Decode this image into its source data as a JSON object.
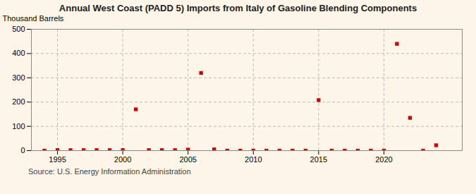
{
  "chart_data": {
    "type": "scatter",
    "title": "Annual West Coast (PADD 5) Imports from Italy of Gasoline Blending Components",
    "ylabel": "Thousand Barrels",
    "source": "Source: U.S. Energy Information Administration",
    "x": [
      1994,
      1995,
      1996,
      1997,
      1998,
      1999,
      2000,
      2001,
      2002,
      2003,
      2004,
      2005,
      2006,
      2007,
      2008,
      2009,
      2010,
      2011,
      2012,
      2013,
      2014,
      2015,
      2016,
      2017,
      2018,
      2019,
      2020,
      2021,
      2022,
      2023,
      2024
    ],
    "values": [
      0,
      2,
      2,
      2,
      2,
      2,
      2,
      170,
      2,
      2,
      2,
      4,
      320,
      5,
      0,
      0,
      0,
      0,
      0,
      0,
      0,
      208,
      0,
      0,
      0,
      0,
      0,
      440,
      135,
      0,
      22
    ],
    "color": "#cc0000",
    "marker": "square",
    "xlim": [
      1993,
      2026
    ],
    "xticks": [
      1995,
      2000,
      2005,
      2010,
      2015,
      2020
    ],
    "ylim": [
      0,
      500
    ],
    "yticks": [
      0,
      100,
      200,
      300,
      400,
      500
    ],
    "grid": true
  }
}
